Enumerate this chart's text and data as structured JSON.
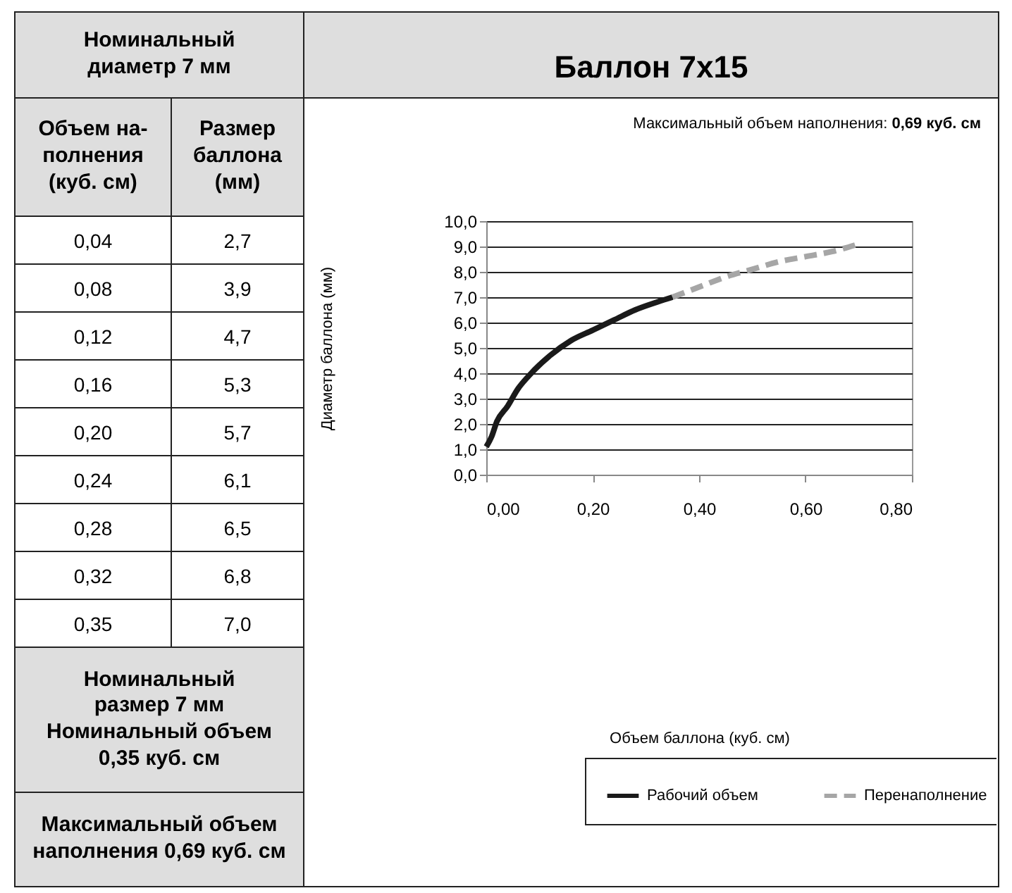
{
  "chart_data": [
    {
      "type": "other",
      "annotations": [
        "Номинальный диаметр 7 мм",
        "Объем на-полнения (куб. см)",
        "Размер баллона (мм)",
        "0,04",
        "2,7",
        "0,08",
        "3,9",
        "0,12",
        "4,7",
        "0,16",
        "5,3",
        "0,20",
        "5,7",
        "0,24",
        "6,1",
        "0,28",
        "6,5",
        "0,32",
        "6,8",
        "0,35",
        "7,0",
        "Номинальный размер 7 мм Номинальный объем 0,35 куб. см",
        "Максимальный объем наполнения 0,69 куб. см"
      ]
    },
    {
      "type": "line",
      "title": "Баллон 7x15",
      "xlabel": "Объем баллона (куб. см)",
      "ylabel": "Диаметр баллона (мм)",
      "annotations": [
        "Максимальный объем наполнения: 0,69 куб. см"
      ],
      "series": [
        {
          "name": "Рабочий объем",
          "color": "#1a1a1a",
          "line_style": "solid",
          "x": [
            0,
            0.01,
            0.02,
            0.04,
            0.06,
            0.08,
            0.12,
            0.16,
            0.2,
            0.24,
            0.28,
            0.32,
            0.35
          ],
          "values": [
            1.1,
            1.5,
            2.1,
            2.7,
            3.4,
            3.9,
            4.7,
            5.3,
            5.7,
            6.1,
            6.5,
            6.8,
            7.0
          ]
        },
        {
          "name": "Перенаполнение",
          "color": "#a6a6a6",
          "line_style": "dashed",
          "x": [
            0.35,
            0.4,
            0.45,
            0.5,
            0.55,
            0.6,
            0.65,
            0.7
          ],
          "values": [
            7.0,
            7.4,
            7.8,
            8.1,
            8.4,
            8.6,
            8.8,
            9.1
          ]
        }
      ],
      "xlim": [
        0,
        0.8
      ],
      "xticks": [
        {
          "value": 0,
          "label": "0,00"
        },
        {
          "value": 0.2,
          "label": "0,20"
        },
        {
          "value": 0.4,
          "label": "0,40"
        },
        {
          "value": 0.6,
          "label": "0,60"
        },
        {
          "value": 0.8,
          "label": "0,80"
        }
      ],
      "ylim": [
        0,
        10
      ],
      "yticks": [
        {
          "value": 0,
          "label": "0,0"
        },
        {
          "value": 1,
          "label": "1,0"
        },
        {
          "value": 2,
          "label": "2,0"
        },
        {
          "value": 3,
          "label": "3,0"
        },
        {
          "value": 4,
          "label": "4,0"
        },
        {
          "value": 5,
          "label": "5,0"
        },
        {
          "value": 6,
          "label": "6,0"
        },
        {
          "value": 7,
          "label": "7,0"
        },
        {
          "value": 8,
          "label": "8,0"
        },
        {
          "value": 9,
          "label": "9,0"
        },
        {
          "value": 10,
          "label": "10,0"
        }
      ],
      "grid": "y",
      "legend": "bottom right"
    }
  ]
}
